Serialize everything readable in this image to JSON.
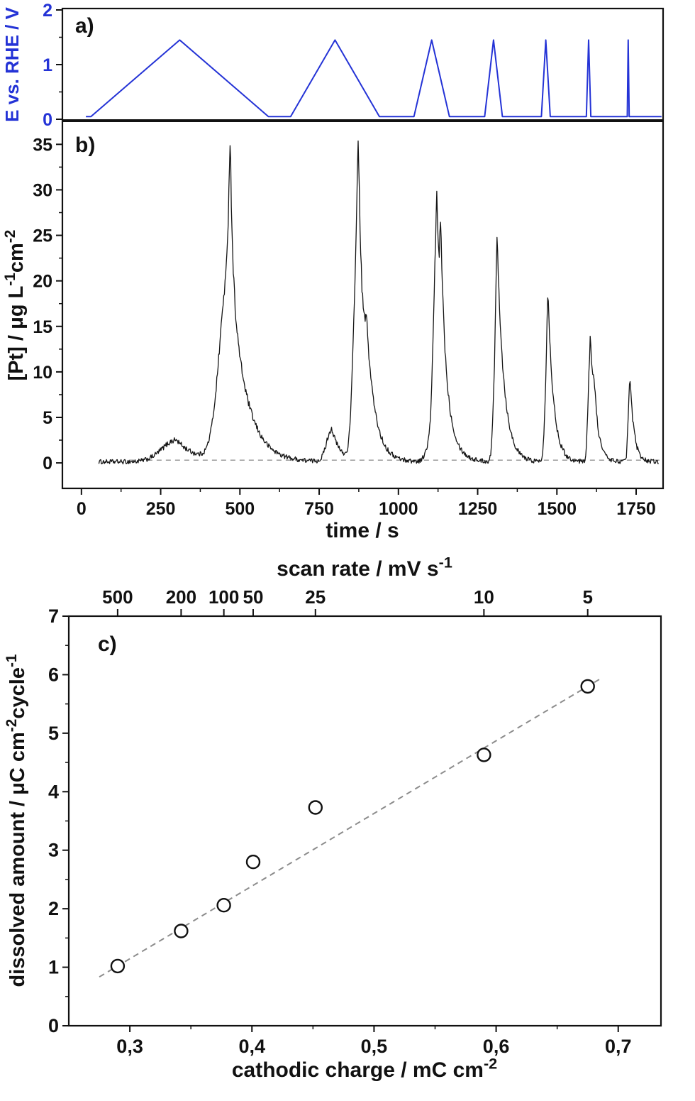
{
  "colors": {
    "potential_blue": "#2433d6",
    "trace_black": "#151515",
    "reference_gray": "#9a9a9a",
    "fit_gray": "#8c8c8c",
    "axis_black": "#111111",
    "background": "#ffffff"
  },
  "chart_data": [
    {
      "panel": "a",
      "type": "line",
      "panel_label": "a)",
      "ylabel_parts": [
        {
          "text": "E vs. RHE / V"
        }
      ],
      "ylim": [
        0,
        2
      ],
      "yticks": [
        0,
        1,
        2
      ],
      "y_minor_ticks": [
        0.5,
        1.5
      ],
      "E_low": 0.05,
      "E_high": 1.45,
      "cycles": [
        {
          "scan_rate_mV_s": 5,
          "t_start": 30,
          "t_apex": 310,
          "t_end": 590
        },
        {
          "scan_rate_mV_s": 10,
          "t_start": 660,
          "t_apex": 800,
          "t_end": 940
        },
        {
          "scan_rate_mV_s": 25,
          "t_start": 1049,
          "t_apex": 1105,
          "t_end": 1161
        },
        {
          "scan_rate_mV_s": 50,
          "t_start": 1272,
          "t_apex": 1300,
          "t_end": 1328
        },
        {
          "scan_rate_mV_s": 100,
          "t_start": 1451,
          "t_apex": 1465,
          "t_end": 1479
        },
        {
          "scan_rate_mV_s": 200,
          "t_start": 1593,
          "t_apex": 1600,
          "t_end": 1607
        },
        {
          "scan_rate_mV_s": 500,
          "t_start": 1722,
          "t_apex": 1725,
          "t_end": 1728
        }
      ]
    },
    {
      "panel": "b",
      "type": "line",
      "panel_label": "b)",
      "ylabel_parts": [
        {
          "text": "[Pt] / μg L"
        },
        {
          "text": "-1",
          "sup": true
        },
        {
          "text": "cm"
        },
        {
          "text": "-2",
          "sup": true
        }
      ],
      "xlabel_parts": [
        {
          "text": "time / s"
        }
      ],
      "xlim": [
        -60,
        1835
      ],
      "xticks": [
        0,
        250,
        500,
        750,
        1000,
        1250,
        1500,
        1750
      ],
      "x_minor_step": 125,
      "ylim": [
        -2.8,
        37.6
      ],
      "yticks": [
        0,
        5,
        10,
        15,
        20,
        25,
        30,
        35
      ],
      "y_minor_step": 2.5,
      "baseline": 0.12,
      "baseline_ref": 0.3,
      "trace_t_start": 55,
      "trace_t_end": 1822,
      "peaks": [
        {
          "t": 300,
          "h": 2.4,
          "rise": 45,
          "decay": 60
        },
        {
          "t": 468,
          "h": 22.0,
          "rise": 30,
          "decay": 48
        },
        {
          "t": 470,
          "h": 13.5,
          "rise": 5,
          "decay": 7
        },
        {
          "t": 790,
          "h": 3.6,
          "rise": 16,
          "decay": 26
        },
        {
          "t": 873,
          "h": 27.0,
          "rise": 13,
          "decay": 30
        },
        {
          "t": 874,
          "h": 9.3,
          "rise": 3,
          "decay": 5
        },
        {
          "t": 900,
          "h": 4.5,
          "rise": 5,
          "decay": 18
        },
        {
          "t": 1095,
          "h": 1.3,
          "rise": 12,
          "decay": 12
        },
        {
          "t": 1122,
          "h": 25.5,
          "rise": 11,
          "decay": 26
        },
        {
          "t": 1122,
          "h": 3.5,
          "rise": 3,
          "decay": 4
        },
        {
          "t": 1134,
          "h": 10.0,
          "rise": 3,
          "decay": 10
        },
        {
          "t": 1300,
          "h": 1.2,
          "rise": 6,
          "decay": 8
        },
        {
          "t": 1313,
          "h": 22.0,
          "rise": 8,
          "decay": 22
        },
        {
          "t": 1311,
          "h": 2.8,
          "rise": 2.5,
          "decay": 3.5
        },
        {
          "t": 1462,
          "h": 1.2,
          "rise": 5,
          "decay": 6
        },
        {
          "t": 1473,
          "h": 17.0,
          "rise": 7,
          "decay": 18
        },
        {
          "t": 1472,
          "h": 1.5,
          "rise": 2,
          "decay": 3
        },
        {
          "t": 1597,
          "h": 1.0,
          "rise": 4,
          "decay": 5
        },
        {
          "t": 1606,
          "h": 12.8,
          "rise": 6,
          "decay": 16
        },
        {
          "t": 1607,
          "h": 0.8,
          "rise": 2,
          "decay": 3
        },
        {
          "t": 1618,
          "h": 3.0,
          "rise": 4,
          "decay": 10
        },
        {
          "t": 1724,
          "h": 0.8,
          "rise": 3,
          "decay": 4
        },
        {
          "t": 1731,
          "h": 8.8,
          "rise": 5,
          "decay": 13
        }
      ]
    },
    {
      "panel": "c",
      "type": "scatter",
      "panel_label": "c)",
      "ylabel_parts": [
        {
          "text": "dissolved amount / μC cm"
        },
        {
          "text": "-2",
          "sup": true
        },
        {
          "text": "cycle"
        },
        {
          "text": "-1",
          "sup": true
        }
      ],
      "xlabel_parts": [
        {
          "text": "cathodic charge / mC cm"
        },
        {
          "text": "-2",
          "sup": true
        }
      ],
      "top_axis": {
        "label_parts": [
          {
            "text": "scan rate / mV s"
          },
          {
            "text": "-1",
            "sup": true
          }
        ],
        "ticks": [
          {
            "label": "500",
            "x": 0.29
          },
          {
            "label": "200",
            "x": 0.342
          },
          {
            "label": "100",
            "x": 0.377
          },
          {
            "label": "50",
            "x": 0.401
          },
          {
            "label": "25",
            "x": 0.452
          },
          {
            "label": "10",
            "x": 0.59
          },
          {
            "label": "5",
            "x": 0.675
          }
        ]
      },
      "xlim": [
        0.25,
        0.735
      ],
      "xticks": [
        {
          "v": 0.3,
          "label": "0,3"
        },
        {
          "v": 0.4,
          "label": "0,4"
        },
        {
          "v": 0.5,
          "label": "0,5"
        },
        {
          "v": 0.6,
          "label": "0,6"
        },
        {
          "v": 0.7,
          "label": "0,7"
        }
      ],
      "x_minor_ticks": [
        0.35,
        0.45,
        0.55,
        0.65
      ],
      "ylim": [
        0,
        7
      ],
      "yticks": [
        0,
        1,
        2,
        3,
        4,
        5,
        6,
        7
      ],
      "y_minor_ticks": [
        0.5,
        1.5,
        2.5,
        3.5,
        4.5,
        5.5,
        6.5
      ],
      "points": [
        {
          "scan_rate_mV_s": 500,
          "cathodic_charge": 0.29,
          "dissolved_amount": 1.02
        },
        {
          "scan_rate_mV_s": 200,
          "cathodic_charge": 0.342,
          "dissolved_amount": 1.62
        },
        {
          "scan_rate_mV_s": 100,
          "cathodic_charge": 0.377,
          "dissolved_amount": 2.06
        },
        {
          "scan_rate_mV_s": 50,
          "cathodic_charge": 0.401,
          "dissolved_amount": 2.8
        },
        {
          "scan_rate_mV_s": 25,
          "cathodic_charge": 0.452,
          "dissolved_amount": 3.73
        },
        {
          "scan_rate_mV_s": 10,
          "cathodic_charge": 0.59,
          "dissolved_amount": 4.63
        },
        {
          "scan_rate_mV_s": 5,
          "cathodic_charge": 0.675,
          "dissolved_amount": 5.8
        }
      ],
      "fit_line": {
        "x1": 0.275,
        "y1": 0.835,
        "x2": 0.687,
        "y2": 5.95,
        "dashed": true
      }
    }
  ]
}
